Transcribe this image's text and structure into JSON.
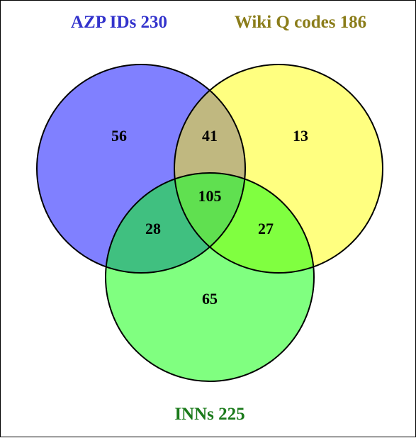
{
  "sets": [
    {
      "key": "azp",
      "label": "AZP IDs 230",
      "color": "#3333cc"
    },
    {
      "key": "wiki",
      "label": "Wiki Q codes 186",
      "color": "#8b7d1a"
    },
    {
      "key": "inn",
      "label": "INNs 225",
      "color": "#1a7a1a"
    }
  ],
  "regions": {
    "azp_only": "56",
    "azp_wiki": "41",
    "wiki_only": "13",
    "all_three": "105",
    "azp_inn": "28",
    "wiki_inn": "27",
    "inn_only": "65"
  },
  "colors": {
    "azp_fill": "#8080ff",
    "wiki_fill": "#ffff80",
    "inn_fill": "#80ff80",
    "azp_wiki_fill": "#c0b880",
    "azp_inn_fill": "#40c080",
    "wiki_inn_fill": "#80ff40",
    "all_fill": "#60e050"
  }
}
